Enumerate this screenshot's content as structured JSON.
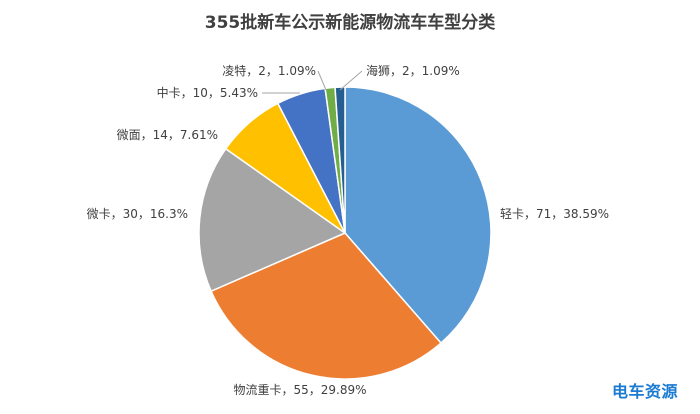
{
  "chart_data": {
    "type": "pie",
    "title": "355批新车公示新能源物流车车型分类",
    "slices": [
      {
        "name": "轻卡",
        "value": 71,
        "percent": "38.59%",
        "color": "#5b9bd5"
      },
      {
        "name": "物流重卡",
        "value": 55,
        "percent": "29.89%",
        "color": "#ed7d31"
      },
      {
        "name": "微卡",
        "value": 30,
        "percent": "16.3%",
        "color": "#a5a5a5"
      },
      {
        "name": "微面",
        "value": 14,
        "percent": "7.61%",
        "color": "#ffc000"
      },
      {
        "name": "中卡",
        "value": 10,
        "percent": "5.43%",
        "color": "#4472c4"
      },
      {
        "name": "凌特",
        "value": 2,
        "percent": "1.09%",
        "color": "#70ad47"
      },
      {
        "name": "海狮",
        "value": 2,
        "percent": "1.09%",
        "color": "#255e91"
      }
    ],
    "label_separator": "，"
  },
  "watermark": "电车资源"
}
